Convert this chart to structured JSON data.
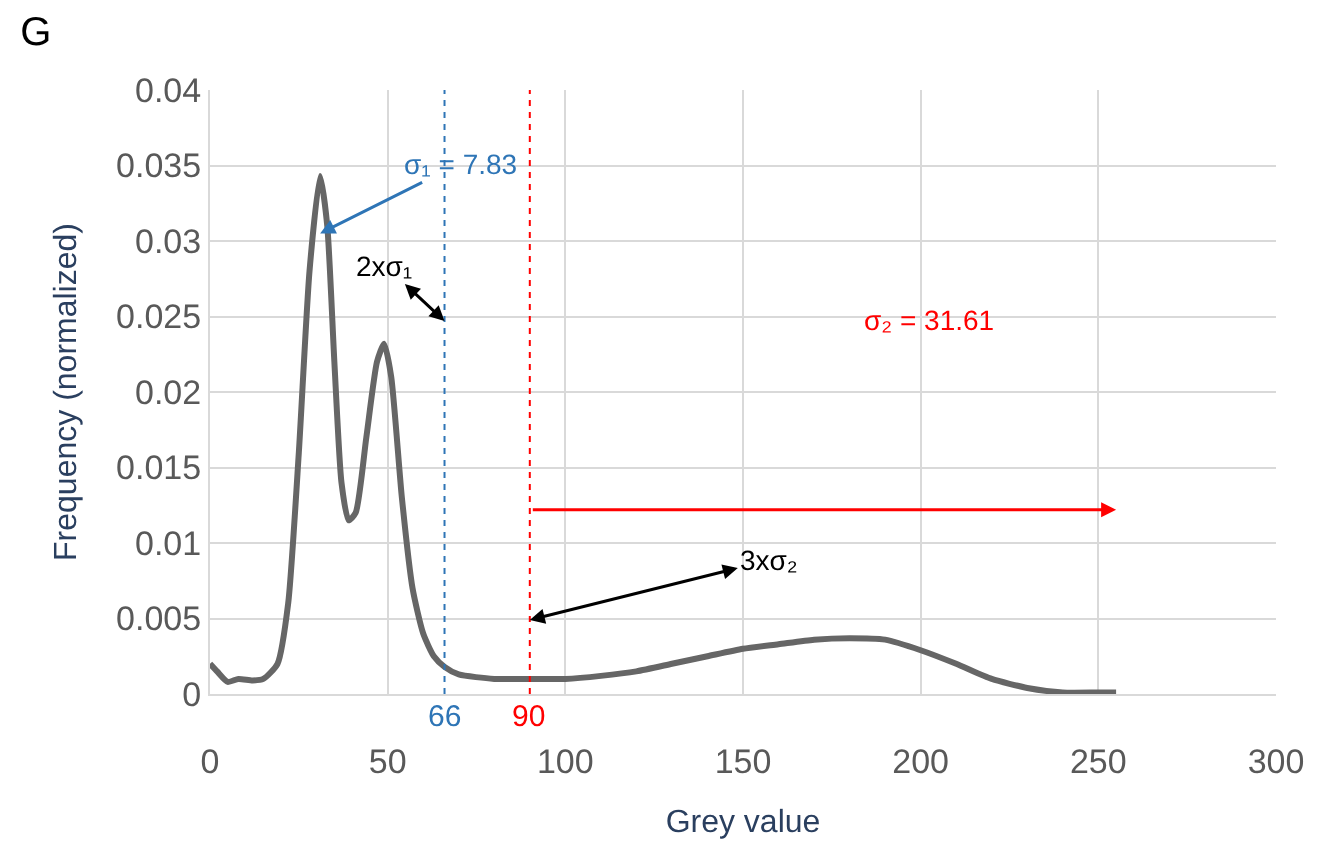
{
  "chart_data": {
    "type": "line",
    "title": "G",
    "xlabel": "Grey value",
    "ylabel": "Frequency (normalized)",
    "x": [
      0,
      2,
      5,
      8,
      12,
      15,
      19,
      22,
      25,
      28,
      31,
      33,
      35,
      37,
      39,
      41,
      44,
      47,
      49,
      51,
      54,
      57,
      60,
      63,
      66,
      70,
      80,
      90,
      100,
      110,
      120,
      130,
      140,
      150,
      160,
      170,
      180,
      190,
      200,
      210,
      220,
      230,
      240,
      250,
      255
    ],
    "series": [
      {
        "color": "#666666",
        "values": [
          0.002,
          0.0015,
          0.0008,
          0.001,
          0.0009,
          0.001,
          0.002,
          0.006,
          0.016,
          0.028,
          0.0343,
          0.031,
          0.022,
          0.014,
          0.0115,
          0.012,
          0.017,
          0.022,
          0.0232,
          0.021,
          0.013,
          0.007,
          0.004,
          0.0025,
          0.0018,
          0.0013,
          0.001,
          0.001,
          0.001,
          0.0012,
          0.0015,
          0.002,
          0.0025,
          0.003,
          0.0033,
          0.0036,
          0.0037,
          0.0036,
          0.0029,
          0.002,
          0.001,
          0.0004,
          0.0001,
          0.0001,
          0.0001
        ]
      }
    ],
    "xlim": [
      0,
      300
    ],
    "xticks": [
      0,
      50,
      100,
      150,
      200,
      250,
      300
    ],
    "ylim": [
      0,
      0.04
    ],
    "yticks": [
      0,
      0.005,
      0.01,
      0.015,
      0.02,
      0.025,
      0.03,
      0.035,
      0.04
    ],
    "grid": true,
    "marker": "none",
    "line_style": "solid",
    "ref_lines": [
      {
        "axis": "x",
        "value": 66,
        "label": "66",
        "color": "#2e75b6",
        "line_style": "dotted"
      },
      {
        "axis": "x",
        "value": 90,
        "label": "90",
        "color": "#ff0000",
        "line_style": "dotted"
      }
    ],
    "annotations": [
      {
        "text": "σ₁ = 7.83",
        "x": 31,
        "y": 0.0305
      },
      {
        "text": "2xσ₁",
        "x": 66,
        "y": 0.0247
      },
      "σ₂ = 31.61",
      {
        "text": "3xσ₂",
        "x": 90,
        "y": 0.0049
      }
    ]
  }
}
